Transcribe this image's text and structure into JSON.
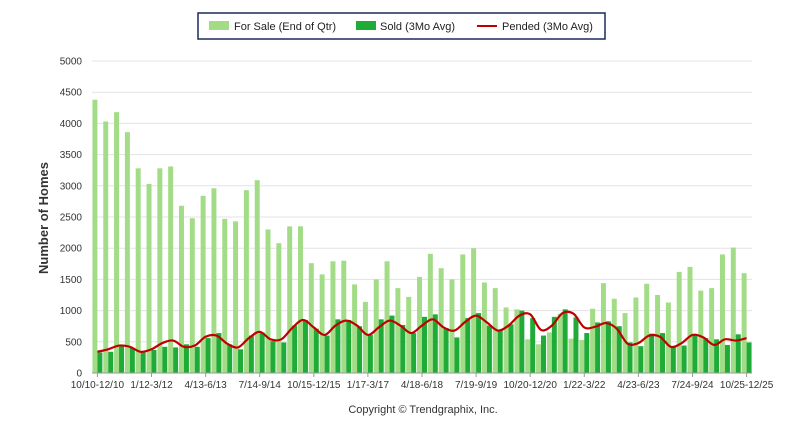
{
  "chart_data": {
    "type": "bar",
    "ylabel": "Number of Homes",
    "ylim": [
      0,
      5000
    ],
    "yticks": [
      0,
      500,
      1000,
      1500,
      2000,
      2500,
      3000,
      3500,
      4000,
      4500,
      5000
    ],
    "grid": true,
    "legend_position": "top-center",
    "categories": [
      "10/10-12/10",
      "1/11-3/11",
      "4/11-6/11",
      "7/11-9/11",
      "10/11-12/11",
      "1/12-3/12",
      "4/12-6/12",
      "7/12-9/12",
      "10/12-12/12",
      "1/13-3/13",
      "4/13-6/13",
      "7/13-9/13",
      "10/13-12/13",
      "1/14-3/14",
      "4/14-6/14",
      "7/14-9/14",
      "10/14-12/14",
      "1/15-3/15",
      "4/15-6/15",
      "7/15-9/15",
      "10/15-12/15",
      "1/16-3/16",
      "4/16-6/16",
      "7/16-9/16",
      "10/16-12/16",
      "1/17-3/17",
      "4/17-6/17",
      "7/17-9/17",
      "10/17-12/17",
      "1/18-3/18",
      "4/18-6/18",
      "7/18-9/18",
      "10/18-12/18",
      "1/19-3/19",
      "4/19-6/19",
      "7/19-9/19",
      "10/19-12/19",
      "1/20-3/20",
      "4/20-6/20",
      "7/20-9/20",
      "10/20-12/20",
      "1/21-3/21",
      "4/21-6/21",
      "7/21-9/21",
      "10/21-12/21",
      "1/22-3/22",
      "4/22-6/22",
      "7/22-9/22",
      "10/22-12/22",
      "1/23-3/23",
      "4/23-6/23",
      "7/23-9/23",
      "10/23-12/23",
      "1/24-3/24",
      "4/24-6/24",
      "7/24-9/24",
      "10/24-12/24",
      "1/25-3/25",
      "4/25-6/25",
      "7/25-9/25",
      "10/25-12/25"
    ],
    "shown_tick_labels": [
      "10/10-12/10",
      "1/12-3/12",
      "4/13-6/13",
      "7/14-9/14",
      "10/15-12/15",
      "1/17-3/17",
      "4/18-6/18",
      "7/19-9/19",
      "10/20-12/20",
      "1/22-3/22",
      "4/23-6/23",
      "7/24-9/24",
      "10/25-12/25"
    ],
    "series": [
      {
        "name": "For Sale (End of Qtr)",
        "kind": "bar",
        "color": "#a3dc86",
        "values": [
          4380,
          4030,
          4180,
          3860,
          3280,
          3030,
          3280,
          3310,
          2680,
          2480,
          2840,
          2960,
          2470,
          2430,
          2930,
          3090,
          2300,
          2080,
          2350,
          2350,
          1760,
          1580,
          1790,
          1800,
          1420,
          1140,
          1500,
          1790,
          1360,
          1220,
          1540,
          1910,
          1680,
          1500,
          1900,
          2000,
          1450,
          1360,
          1050,
          1020,
          540,
          460,
          650,
          950,
          550,
          530,
          1030,
          1440,
          1190,
          960,
          1210,
          1430,
          1250,
          1130,
          1620,
          1700,
          1320,
          1360,
          1900,
          2010,
          1600
        ]
      },
      {
        "name": "Sold (3Mo Avg)",
        "kind": "bar",
        "color": "#1fab37",
        "values": [
          330,
          340,
          440,
          400,
          330,
          370,
          420,
          410,
          460,
          420,
          560,
          640,
          460,
          380,
          600,
          650,
          510,
          490,
          760,
          850,
          710,
          600,
          860,
          850,
          750,
          610,
          860,
          920,
          770,
          640,
          900,
          940,
          720,
          570,
          880,
          960,
          760,
          690,
          780,
          1000,
          880,
          600,
          900,
          1020,
          890,
          640,
          810,
          830,
          750,
          490,
          430,
          630,
          640,
          430,
          440,
          620,
          560,
          540,
          450,
          620,
          490
        ]
      },
      {
        "name": "Pended (3Mo Avg)",
        "kind": "line",
        "color": "#c00000",
        "values": [
          340,
          380,
          440,
          420,
          340,
          380,
          480,
          520,
          420,
          440,
          580,
          600,
          470,
          410,
          560,
          660,
          540,
          540,
          720,
          850,
          730,
          610,
          760,
          840,
          760,
          610,
          730,
          840,
          760,
          640,
          760,
          860,
          730,
          680,
          820,
          920,
          810,
          680,
          760,
          920,
          940,
          690,
          760,
          960,
          950,
          730,
          740,
          800,
          710,
          470,
          480,
          600,
          580,
          420,
          480,
          610,
          570,
          450,
          540,
          520,
          560
        ]
      }
    ]
  },
  "footer": {
    "copyright": "Copyright © Trendgraphix, Inc."
  }
}
